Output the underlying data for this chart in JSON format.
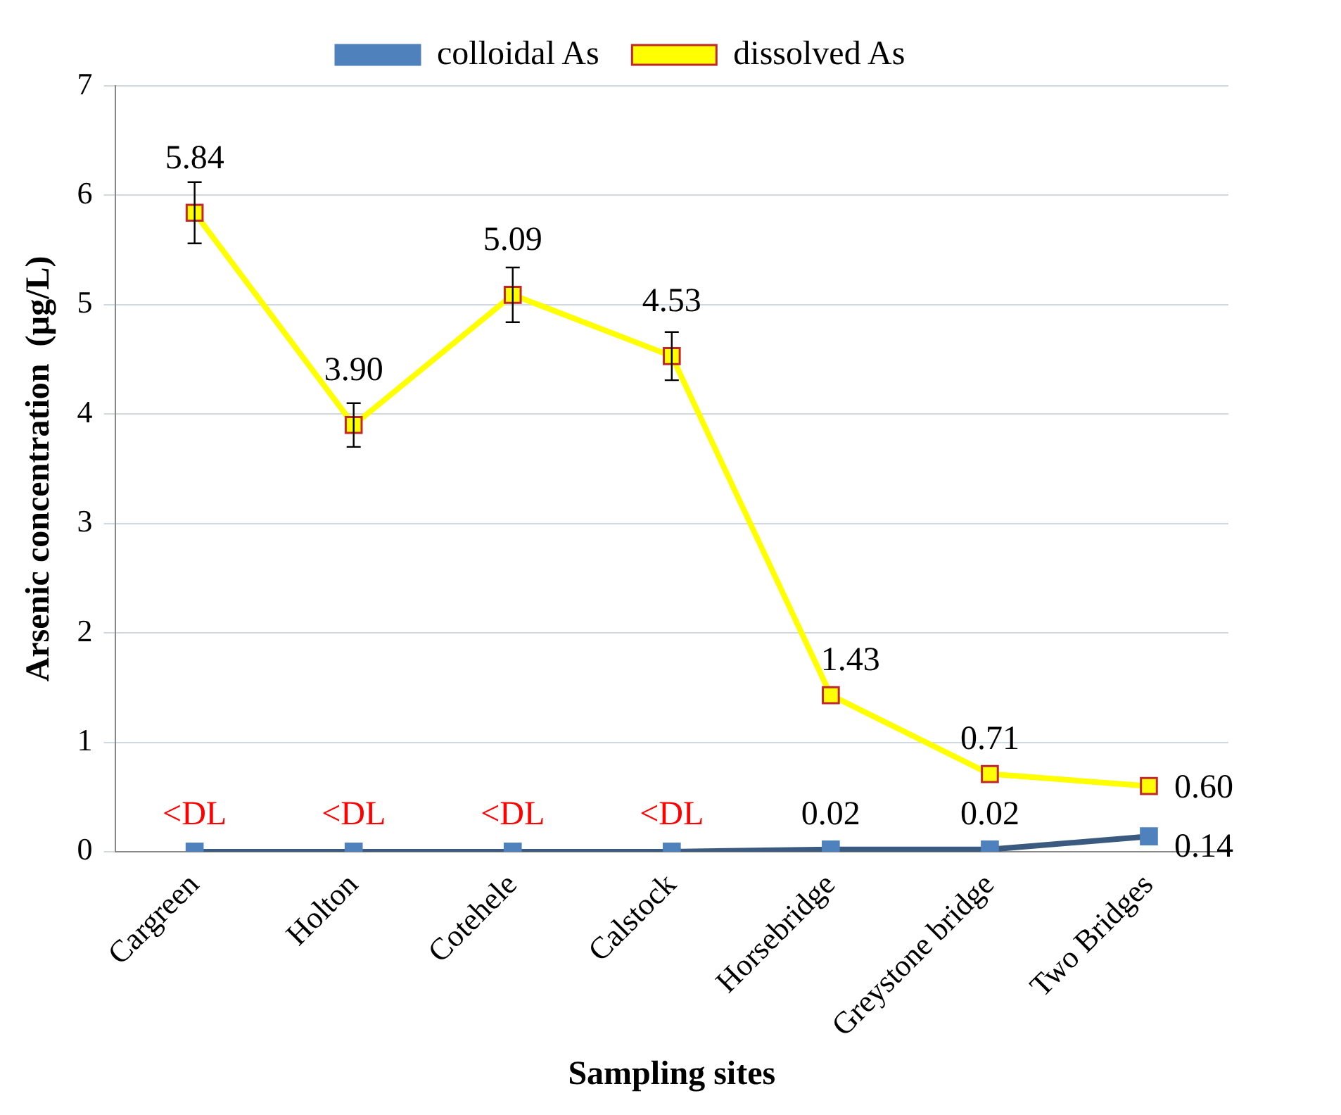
{
  "chart_data": {
    "type": "line",
    "xlabel": "Sampling sites",
    "ylabel": "Arsenic concentration  (µg/L)",
    "categories": [
      "Cargreen",
      "Holton",
      "Cotehele",
      "Calstock",
      "Horsebridge",
      "Greystone bridge",
      "Two Bridges"
    ],
    "series": [
      {
        "name": "colloidal As",
        "color": "#4f81bd",
        "values": [
          0,
          0,
          0,
          0,
          0.02,
          0.02,
          0.14
        ],
        "value_labels": [
          null,
          null,
          null,
          null,
          "0.02",
          "0.02",
          "0.14"
        ]
      },
      {
        "name": "dissolved As",
        "color": "#ffff00",
        "values": [
          5.84,
          3.9,
          5.09,
          4.53,
          1.43,
          0.71,
          0.6
        ],
        "value_labels": [
          "5.84",
          "3.90",
          "5.09",
          "4.53",
          "1.43",
          "0.71",
          "0.60"
        ],
        "errors": [
          0.28,
          0.2,
          0.25,
          0.22,
          null,
          null,
          null
        ]
      }
    ],
    "annotations": [
      {
        "text": "<DL",
        "x": "Cargreen",
        "y": 0
      },
      {
        "text": "<DL",
        "x": "Holton",
        "y": 0
      },
      {
        "text": "<DL",
        "x": "Cotehele",
        "y": 0
      },
      {
        "text": "<DL",
        "x": "Calstock",
        "y": 0
      }
    ],
    "ylim": [
      0,
      7
    ],
    "yticks": [
      0,
      1,
      2,
      3,
      4,
      5,
      6,
      7
    ],
    "grid": "y",
    "legend": "top",
    "marker": "square",
    "line_style": "solid"
  }
}
